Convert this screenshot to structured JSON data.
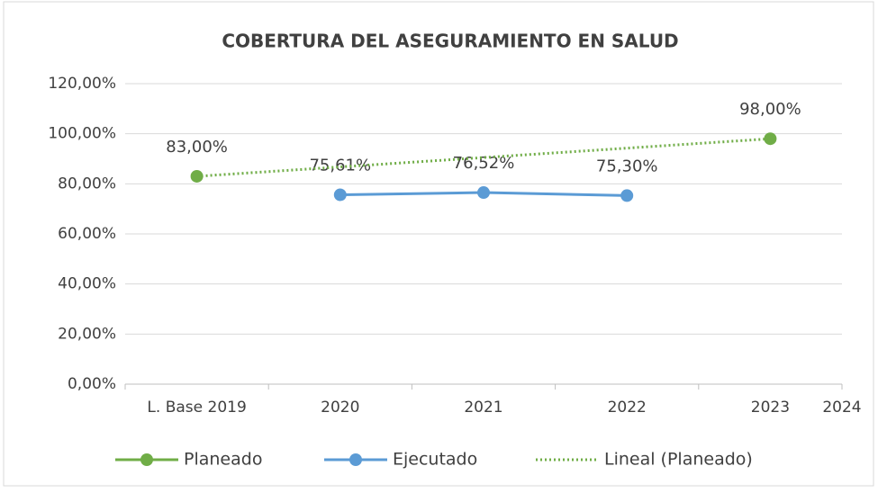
{
  "chart_data": {
    "type": "line",
    "title": "COBERTURA DEL ASEGURAMIENTO EN SALUD",
    "categories": [
      "L. Base 2019",
      "2020",
      "2021",
      "2022",
      "2023",
      "2024"
    ],
    "series": [
      {
        "name": "Planeado",
        "color": "#70ad47",
        "values": [
          83,
          null,
          null,
          null,
          98,
          null
        ],
        "value_labels": [
          "83,00%",
          null,
          null,
          null,
          "98,00%",
          null
        ]
      },
      {
        "name": "Ejecutado",
        "color": "#5b9bd5",
        "values": [
          null,
          75.61,
          76.52,
          75.3,
          null,
          null
        ],
        "value_labels": [
          null,
          "75,61%",
          "76,52%",
          "75,30%",
          null,
          null
        ]
      },
      {
        "name": "Lineal (Planeado)",
        "color": "#70ad47",
        "dash": "dotted",
        "values": [
          83,
          null,
          null,
          null,
          98,
          null
        ]
      }
    ],
    "ylim": [
      0,
      120
    ],
    "yticks": [
      {
        "value": 0,
        "label": "0,00%"
      },
      {
        "value": 20,
        "label": "20,00%"
      },
      {
        "value": 40,
        "label": "40,00%"
      },
      {
        "value": 60,
        "label": "60,00%"
      },
      {
        "value": 80,
        "label": "80,00%"
      },
      {
        "value": 100,
        "label": "100,00%"
      },
      {
        "value": 120,
        "label": "120,00%"
      }
    ],
    "grid": true,
    "legend": "bottom"
  }
}
